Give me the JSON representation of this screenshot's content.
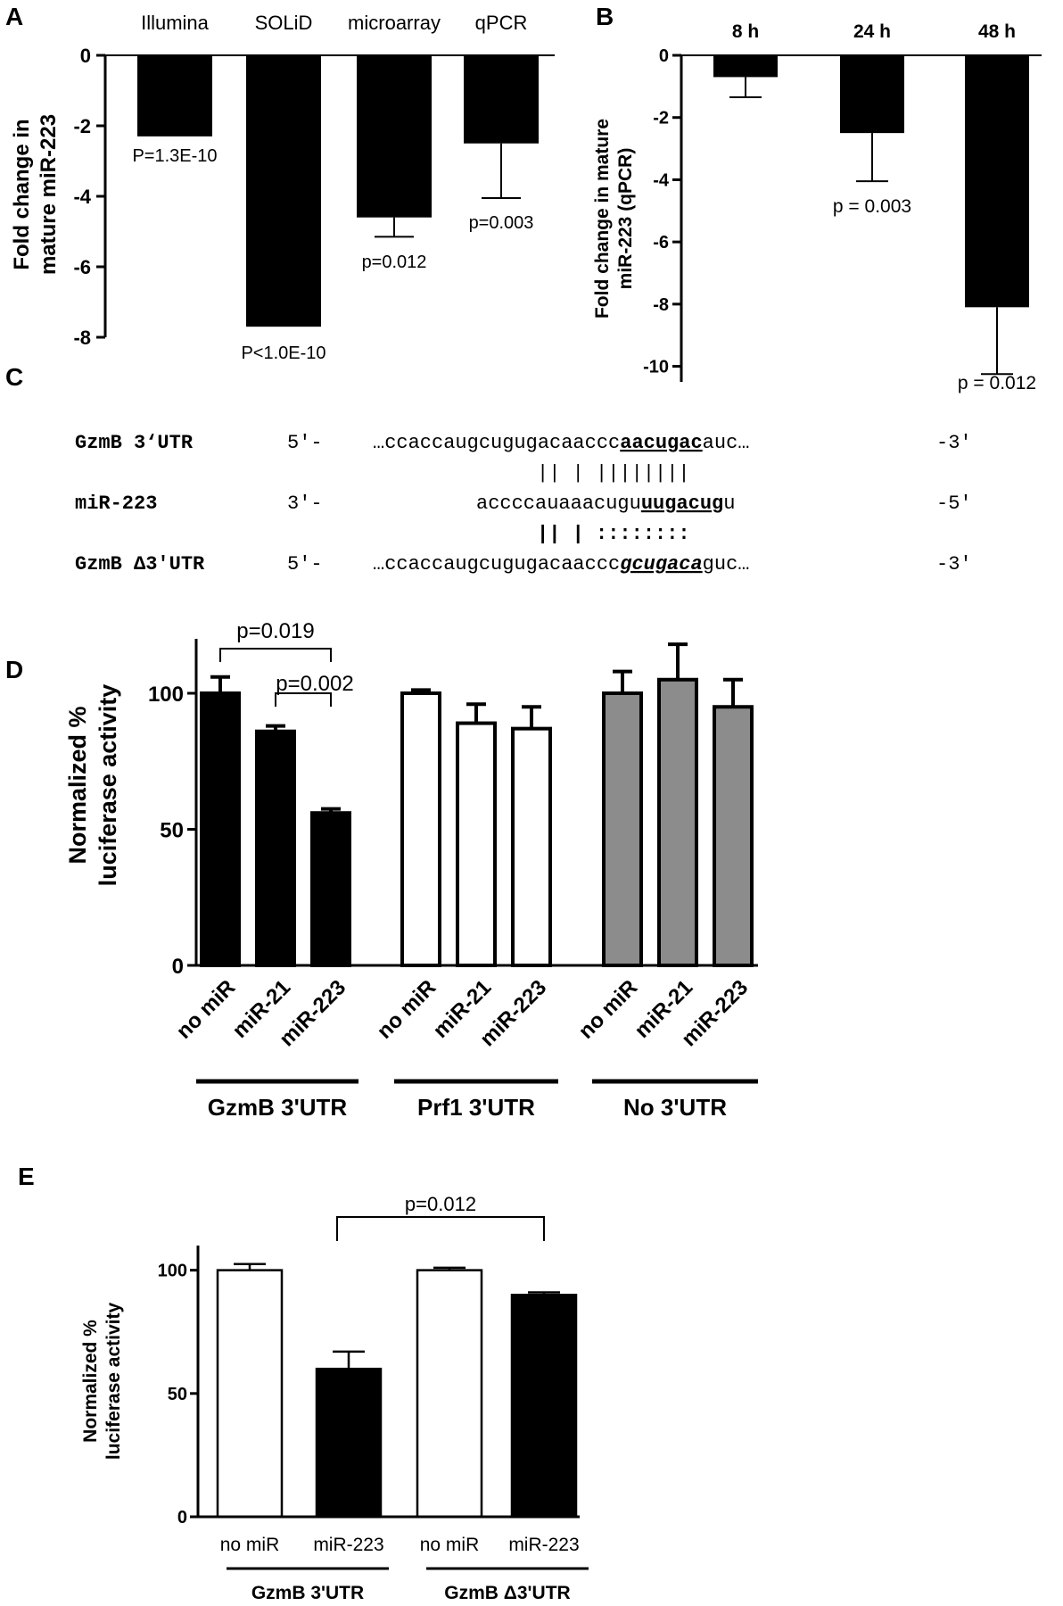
{
  "panel_letters": [
    "A",
    "B",
    "C",
    "D",
    "E"
  ],
  "panelA": {
    "ylabel_lines": [
      "Fold change in",
      "mature miR-223"
    ],
    "yticks": [
      0,
      -2,
      -4,
      -6,
      -8
    ],
    "categories": [
      "Illumina",
      "SOLiD",
      "microarray",
      "qPCR"
    ],
    "annotations": [
      "P=1.3E-10",
      "P<1.0E-10",
      "p=0.012",
      "p=0.003"
    ]
  },
  "panelB": {
    "ylabel_lines": [
      "Fold change in mature",
      "miR-223 (qPCR)"
    ],
    "yticks": [
      0,
      -2,
      -4,
      -6,
      -8,
      -10
    ],
    "categories": [
      "8 h",
      "24 h",
      "48 h"
    ],
    "annotations": [
      "",
      "p = 0.003",
      "p = 0.012"
    ]
  },
  "panelC": {
    "rows": [
      {
        "name": "GzmB 3‘UTR",
        "end5": "5′-",
        "seq_pre": "…ccaccaugcugugacaaccc",
        "seq_mark": "aacugac",
        "seq_post": "auc…",
        "end3": "-3′"
      },
      {
        "name": "miR-223",
        "end5": "3′-",
        "seq_pre": "accccauaaacugu",
        "seq_mark": "uugacug",
        "seq_post": "u",
        "end3": "-5′"
      },
      {
        "name": "GzmB Δ3′UTR",
        "end5": "5′-",
        "seq_pre": "…ccaccaugcugugacaaccc",
        "seq_mark": "gcugaca",
        "seq_post": "guc…",
        "end3": "-3′"
      }
    ],
    "pair_lines": [
      "||      | ||||||||",
      "||      | ::::::::"
    ]
  },
  "panelD": {
    "ylabel_lines": [
      "Normalized %",
      "luciferase activity"
    ],
    "yticks": [
      0,
      50,
      100
    ],
    "bar_labels": [
      "no miR",
      "miR-21",
      "miR-223",
      "no miR",
      "miR-21",
      "miR-223",
      "no miR",
      "miR-21",
      "miR-223"
    ],
    "group_labels": [
      "GzmB 3'UTR",
      "Prf1 3'UTR",
      "No 3'UTR"
    ],
    "brackets": [
      "p=0.019",
      "p=0.002"
    ]
  },
  "panelE": {
    "ylabel_lines": [
      "Normalized %",
      "luciferase activity"
    ],
    "yticks": [
      0,
      50,
      100
    ],
    "bar_labels": [
      "no  miR",
      "miR-223",
      "no miR",
      "miR-223"
    ],
    "group_labels": [
      "GzmB 3'UTR",
      "GzmB Δ3'UTR"
    ],
    "brackets": [
      "p=0.012"
    ]
  },
  "chart_data": [
    {
      "type": "bar",
      "categories": [
        "Illumina",
        "SOLiD",
        "microarray",
        "qPCR"
      ],
      "values": [
        -2.3,
        -7.7,
        -4.6,
        -2.5
      ],
      "error": [
        0,
        0,
        0.55,
        1.55
      ],
      "ylabel": "Fold change in mature miR-223",
      "ylim": [
        -8,
        0
      ],
      "colors": [
        "#000000"
      ]
    },
    {
      "type": "bar",
      "categories": [
        "8 h",
        "24 h",
        "48 h"
      ],
      "values": [
        -0.7,
        -2.5,
        -8.1
      ],
      "error": [
        0.65,
        1.55,
        2.15
      ],
      "ylabel": "Fold change in mature miR-223 (qPCR)",
      "ylim": [
        -10.5,
        0
      ]
    },
    {
      "type": "bar",
      "categories": [
        "no miR",
        "miR-21",
        "miR-223",
        "no miR",
        "miR-21",
        "miR-223",
        "no miR",
        "miR-21",
        "miR-223"
      ],
      "groups": [
        "GzmB 3'UTR",
        "GzmB 3'UTR",
        "GzmB 3'UTR",
        "Prf1 3'UTR",
        "Prf1 3'UTR",
        "Prf1 3'UTR",
        "No 3'UTR",
        "No 3'UTR",
        "No 3'UTR"
      ],
      "values": [
        100,
        86,
        56,
        100,
        89,
        87,
        100,
        105,
        95
      ],
      "error": [
        6,
        2,
        1.5,
        1.2,
        7,
        8,
        8,
        13,
        10
      ],
      "fills": [
        "#000000",
        "#000000",
        "#000000",
        "#ffffff",
        "#ffffff",
        "#ffffff",
        "#8c8c8c",
        "#8c8c8c",
        "#8c8c8c"
      ],
      "ylabel": "Normalized % luciferase activity",
      "ylim": [
        0,
        120
      ]
    },
    {
      "type": "bar",
      "categories": [
        "no  miR",
        "miR-223",
        "no miR",
        "miR-223"
      ],
      "groups": [
        "GzmB 3'UTR",
        "GzmB 3'UTR",
        "GzmB Δ3'UTR",
        "GzmB Δ3'UTR"
      ],
      "values": [
        100,
        60,
        100,
        90
      ],
      "error": [
        2.5,
        7,
        1,
        1
      ],
      "fills": [
        "#ffffff",
        "#000000",
        "#ffffff",
        "#000000"
      ],
      "ylabel": "Normalized % luciferase activity",
      "ylim": [
        0,
        110
      ]
    }
  ]
}
